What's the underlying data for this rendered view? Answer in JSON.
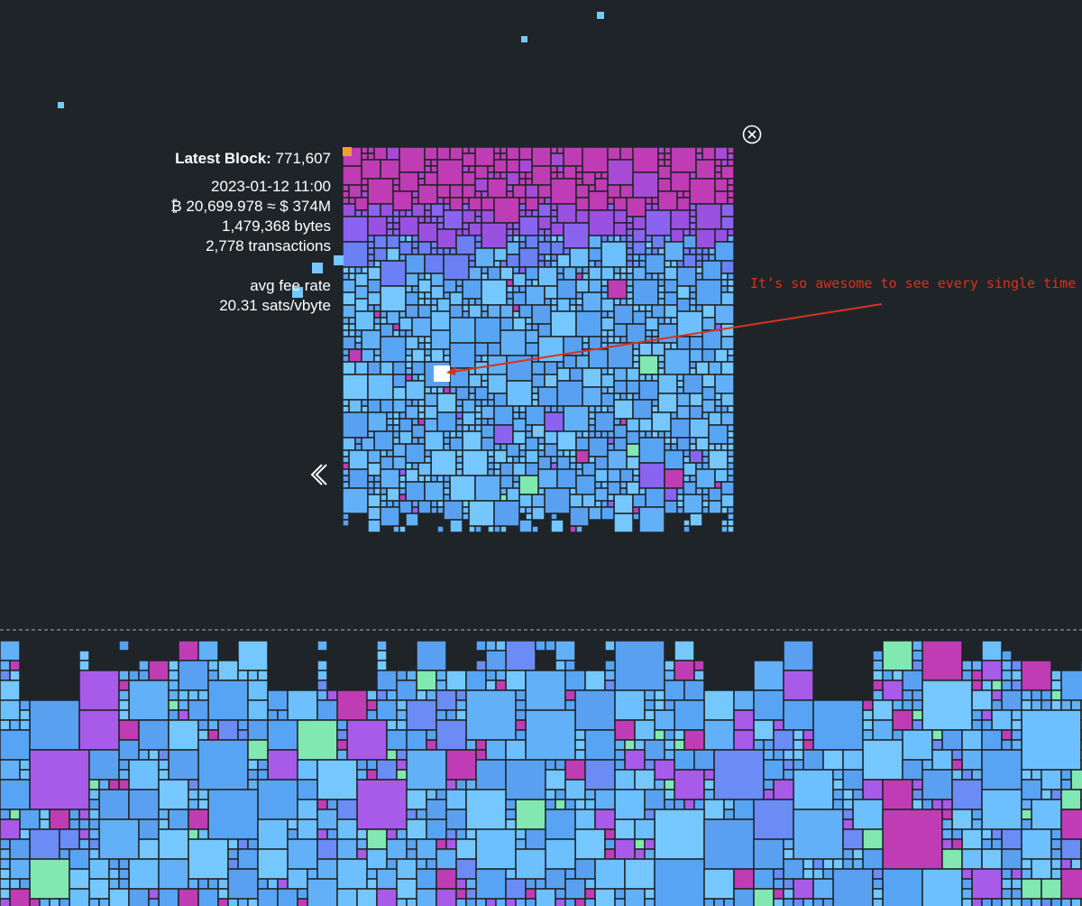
{
  "block": {
    "label": "Latest Block:",
    "height": "771,607",
    "timestamp": "2023-01-12 11:00",
    "value": "₿ 20,699.978 ≈ $ 374M",
    "size": "1,479,368 bytes",
    "transactions": "2,778 transactions",
    "fee_label": "avg fee rate",
    "fee_rate": "20.31 sats/vbyte"
  },
  "annotation": "It’s so awesome to see every single time :)"
}
